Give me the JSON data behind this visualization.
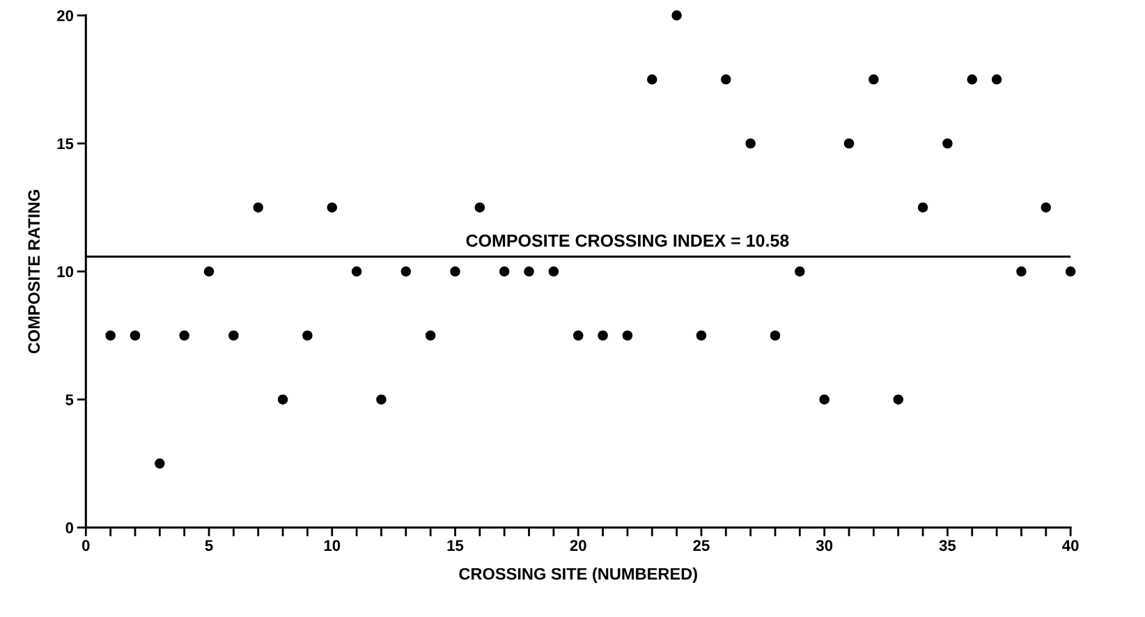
{
  "chart_data": {
    "type": "scatter",
    "xlabel": "CROSSING SITE (NUMBERED)",
    "ylabel": "COMPOSITE RATING",
    "x": [
      1,
      2,
      3,
      4,
      5,
      6,
      7,
      8,
      9,
      10,
      11,
      12,
      13,
      14,
      15,
      16,
      17,
      18,
      19,
      20,
      21,
      22,
      23,
      24,
      25,
      26,
      27,
      28,
      29,
      30,
      31,
      32,
      33,
      34,
      35,
      36,
      37,
      38,
      39,
      40
    ],
    "series": [
      {
        "color": "#000000",
        "values": [
          7.5,
          7.5,
          2.5,
          7.5,
          10,
          7.5,
          12.5,
          5,
          7.5,
          12.5,
          10,
          5,
          10,
          7.5,
          10,
          12.5,
          10,
          10,
          10,
          7.5,
          7.5,
          7.5,
          17.5,
          20,
          7.5,
          17.5,
          15,
          7.5,
          10,
          5,
          15,
          17.5,
          5,
          12.5,
          15,
          17.5,
          17.5,
          10,
          12.5,
          10
        ]
      }
    ],
    "marker": "circle",
    "xlim": [
      0,
      40
    ],
    "ylim": [
      0,
      20
    ],
    "xticks": [
      0,
      {
        "value": 1,
        "label": null
      },
      {
        "value": 2,
        "label": null
      },
      {
        "value": 3,
        "label": null
      },
      {
        "value": 4,
        "label": null
      },
      5,
      {
        "value": 6,
        "label": null
      },
      {
        "value": 7,
        "label": null
      },
      {
        "value": 8,
        "label": null
      },
      {
        "value": 9,
        "label": null
      },
      10,
      {
        "value": 11,
        "label": null
      },
      {
        "value": 12,
        "label": null
      },
      {
        "value": 13,
        "label": null
      },
      {
        "value": 14,
        "label": null
      },
      15,
      {
        "value": 16,
        "label": null
      },
      {
        "value": 17,
        "label": null
      },
      {
        "value": 18,
        "label": null
      },
      {
        "value": 19,
        "label": null
      },
      20,
      {
        "value": 21,
        "label": null
      },
      {
        "value": 22,
        "label": null
      },
      {
        "value": 23,
        "label": null
      },
      {
        "value": 24,
        "label": null
      },
      25,
      {
        "value": 26,
        "label": null
      },
      {
        "value": 27,
        "label": null
      },
      {
        "value": 28,
        "label": null
      },
      {
        "value": 29,
        "label": null
      },
      30,
      {
        "value": 31,
        "label": null
      },
      {
        "value": 32,
        "label": null
      },
      {
        "value": 33,
        "label": null
      },
      {
        "value": 34,
        "label": null
      },
      35,
      {
        "value": 36,
        "label": null
      },
      {
        "value": 37,
        "label": null
      },
      {
        "value": 38,
        "label": null
      },
      {
        "value": 39,
        "label": null
      },
      40
    ],
    "yticks": [
      0,
      5,
      10,
      15,
      20
    ],
    "grid": false,
    "legend": false,
    "ref_lines": [
      {
        "axis": "y",
        "value": 10.58,
        "label": "COMPOSITE CROSSING INDEX = 10.58",
        "color": "#000000",
        "line_style": "solid"
      }
    ]
  }
}
